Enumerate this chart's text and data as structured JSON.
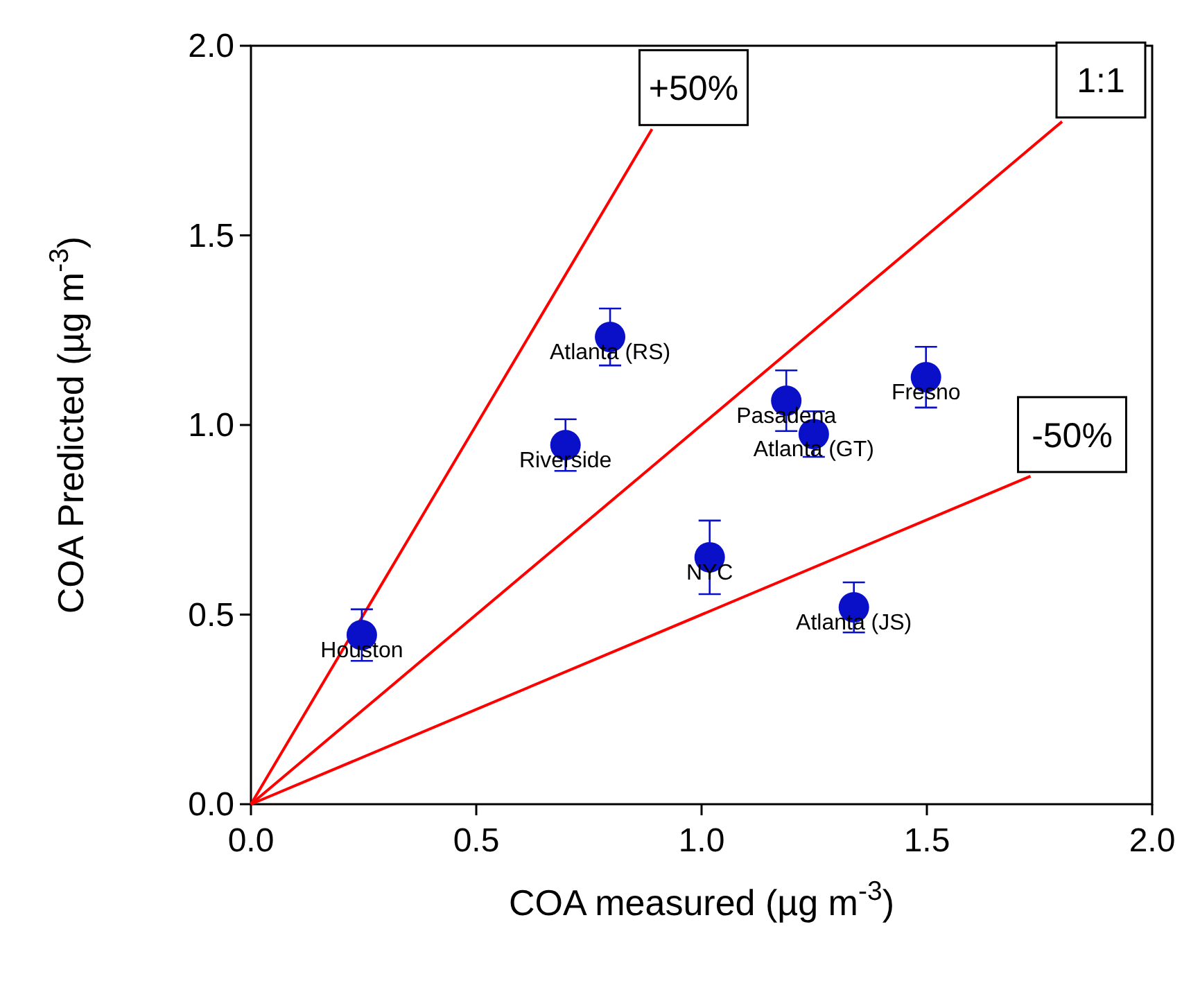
{
  "chart_data": {
    "type": "scatter",
    "xlabel": "COA measured (µg m$^{-3}$)",
    "ylabel": "COA Predicted (µg m$^{-3}$)",
    "xlim": [
      0,
      2
    ],
    "ylim": [
      0,
      2
    ],
    "xticks": [
      {
        "value": 0,
        "label": "0.0"
      },
      {
        "value": 0.5,
        "label": "0.5"
      },
      {
        "value": 1,
        "label": "1.0"
      },
      {
        "value": 1.5,
        "label": "1.5"
      },
      {
        "value": 2,
        "label": "2.0"
      }
    ],
    "yticks": [
      {
        "value": 0,
        "label": "0.0"
      },
      {
        "value": 0.5,
        "label": "0.5"
      },
      {
        "value": 1,
        "label": "1.0"
      },
      {
        "value": 1.5,
        "label": "1.5"
      },
      {
        "value": 2,
        "label": "2.0"
      }
    ],
    "grid": false,
    "series": [
      {
        "type": "line",
        "name": "+50%",
        "color": "#ff0000",
        "x": [
          0,
          0.89
        ],
        "values": [
          0,
          1.78
        ]
      },
      {
        "type": "line",
        "name": "1:1",
        "color": "#ff0000",
        "x": [
          0,
          1.8
        ],
        "values": [
          0,
          1.8
        ]
      },
      {
        "type": "line",
        "name": "-50%",
        "color": "#ff0000",
        "x": [
          0,
          1.73
        ],
        "values": [
          0,
          0.865
        ]
      },
      {
        "color": "#0a0fc8",
        "marker": "circle",
        "x": [
          0.246,
          0.797,
          0.698,
          1.188,
          1.249,
          1.498,
          1.018,
          1.338
        ],
        "values": [
          0.446,
          1.232,
          0.947,
          1.064,
          0.976,
          1.126,
          0.651,
          0.519
        ],
        "errors": [
          0.068,
          0.075,
          0.068,
          0.08,
          0.06,
          0.08,
          0.097,
          0.066
        ]
      }
    ],
    "annotations": [
      {
        "text": "Houston",
        "x": 0.246,
        "y": 0.446
      },
      {
        "text": "Atlanta (RS)",
        "x": 0.797,
        "y": 1.232
      },
      {
        "text": "Riverside",
        "x": 0.698,
        "y": 0.947
      },
      {
        "text": "Pasadena",
        "x": 1.188,
        "y": 1.064
      },
      {
        "text": "Atlanta (GT)",
        "x": 1.249,
        "y": 0.976
      },
      {
        "text": "Fresno",
        "x": 1.498,
        "y": 1.126
      },
      {
        "text": "NYC",
        "x": 1.018,
        "y": 0.651
      },
      {
        "text": "Atlanta (JS)",
        "x": 1.338,
        "y": 0.519
      }
    ]
  }
}
